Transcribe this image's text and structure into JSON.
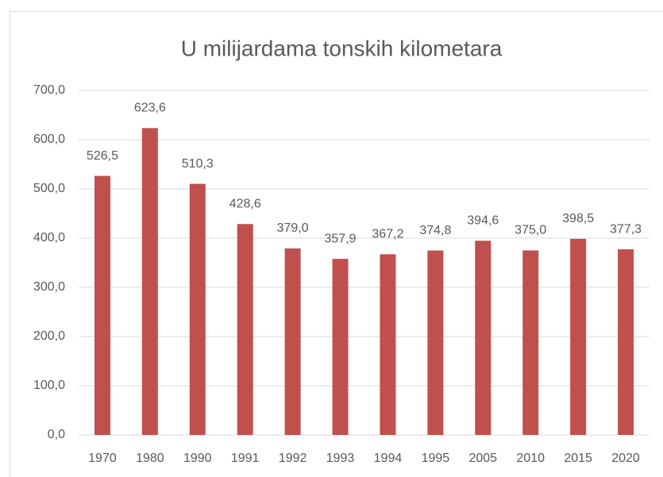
{
  "chart_data": {
    "type": "bar",
    "title": "U milijardama tonskih kilometara",
    "categories": [
      "1970",
      "1980",
      "1990",
      "1991",
      "1992",
      "1993",
      "1994",
      "1995",
      "2005",
      "2010",
      "2015",
      "2020"
    ],
    "values": [
      526.5,
      623.6,
      510.3,
      428.6,
      379.0,
      357.9,
      367.2,
      374.8,
      394.6,
      375.0,
      398.5,
      377.3
    ],
    "value_labels": [
      "526,5",
      "623,6",
      "510,3",
      "428,6",
      "379,0",
      "357,9",
      "367,2",
      "374,8",
      "394,6",
      "375,0",
      "398,5",
      "377,3"
    ],
    "color": "#c0504d",
    "ylim": [
      0,
      700
    ],
    "yticks": [
      {
        "value": 0,
        "label": "0,0"
      },
      {
        "value": 100,
        "label": "100,0"
      },
      {
        "value": 200,
        "label": "200,0"
      },
      {
        "value": 300,
        "label": "300,0"
      },
      {
        "value": 400,
        "label": "400,0"
      },
      {
        "value": 500,
        "label": "500,0"
      },
      {
        "value": 600,
        "label": "600,0"
      },
      {
        "value": 700,
        "label": "700,0"
      }
    ],
    "grid": true
  }
}
